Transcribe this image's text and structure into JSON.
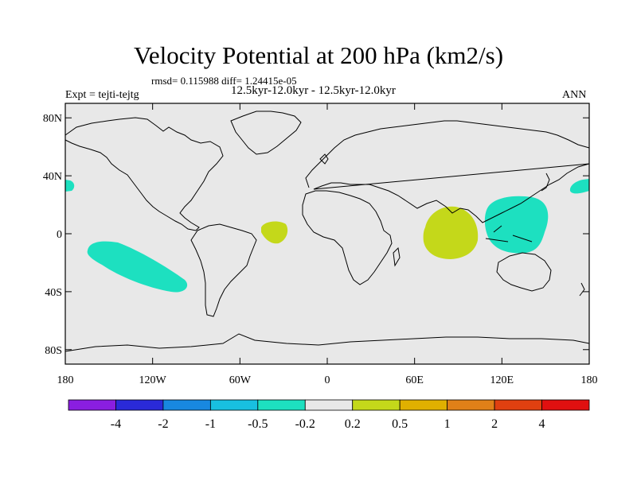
{
  "title": "Velocity Potential at 200 hPa (km2/s)",
  "rmsd_label": "rmsd= 0.115988 diff= 1.24415e-05",
  "period_label": "12.5kyr-12.0kyr - 12.5kyr-12.0kyr",
  "expt_label": "Expt = tejti-tejtg",
  "season_label": "ANN",
  "colors": {
    "land_bg": "#e8e8e8",
    "neg_fill": "#1de0c0",
    "pos_fill": "#c4d81a",
    "coast": "#000000"
  },
  "map": {
    "lat_ticks": [
      {
        "lat": 80,
        "label": "80N"
      },
      {
        "lat": 40,
        "label": "40N"
      },
      {
        "lat": 0,
        "label": "0"
      },
      {
        "lat": -40,
        "label": "40S"
      },
      {
        "lat": -80,
        "label": "80S"
      }
    ],
    "lon_ticks": [
      {
        "lon": -180,
        "label": "180"
      },
      {
        "lon": -120,
        "label": "120W"
      },
      {
        "lon": -60,
        "label": "60W"
      },
      {
        "lon": 0,
        "label": "0"
      },
      {
        "lon": 60,
        "label": "60E"
      },
      {
        "lon": 120,
        "label": "120E"
      },
      {
        "lon": 180,
        "label": "180"
      }
    ]
  },
  "colorbar": {
    "colors": [
      "#8a1ee0",
      "#2a2ad8",
      "#1888e0",
      "#18c0e0",
      "#1de0c0",
      "#e8e8e8",
      "#c4d81a",
      "#e0b000",
      "#e08018",
      "#e04010",
      "#e01010"
    ],
    "labels": [
      "-4",
      "-2",
      "-1",
      "-0.5",
      "-0.2",
      "0.2",
      "0.5",
      "1",
      "2",
      "4"
    ]
  }
}
